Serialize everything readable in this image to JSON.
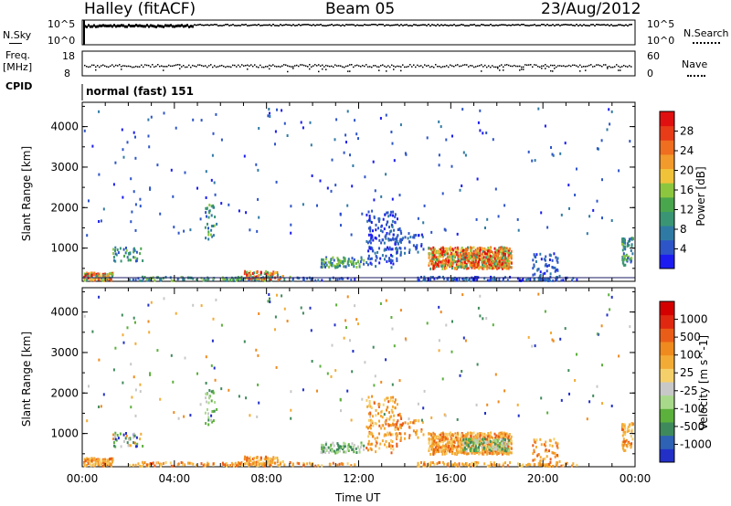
{
  "header": {
    "station": "Halley (fitACF)",
    "beam": "Beam 05",
    "date": "23/Aug/2012"
  },
  "top_panels": {
    "nsky": {
      "label": "N.Sky",
      "ticks": [
        "10^5",
        "10^0"
      ]
    },
    "nsearch": {
      "label": "N.Search",
      "ticks": [
        "10^5",
        "10^0"
      ]
    },
    "freq": {
      "label_line1": "Freq.",
      "label_line2": "[MHz]",
      "ticks": [
        "18",
        "8"
      ]
    },
    "nave": {
      "label": "Nave",
      "ticks": [
        "60",
        "0"
      ]
    },
    "cpid": {
      "label": "CPID",
      "value": "normal (fast) 151"
    }
  },
  "chart_data": [
    {
      "type": "heatmap",
      "name": "power",
      "ylabel": "Slant Range [km]",
      "xlabel": "",
      "x_ticks": [
        "00:00",
        "04:00",
        "08:00",
        "12:00",
        "16:00",
        "20:00",
        "00:00"
      ],
      "xlim_hours": [
        0,
        24
      ],
      "ylim": [
        180,
        4600
      ],
      "y_ticks": [
        1000,
        2000,
        3000,
        4000
      ],
      "colorbar": {
        "label": "Power [dB]",
        "range": [
          0,
          30
        ],
        "ticks": [
          "4",
          "8",
          "12",
          "16",
          "20",
          "24",
          "28"
        ],
        "colors": [
          "#1c1cf0",
          "#2d55c8",
          "#2f7aa5",
          "#3a9574",
          "#4aa64d",
          "#8cc63f",
          "#f0c23a",
          "#f29a2b",
          "#ef6e1f",
          "#e83b18",
          "#e11010"
        ]
      }
    },
    {
      "type": "heatmap",
      "name": "velocity",
      "ylabel": "Slant Range [km]",
      "xlabel": "Time UT",
      "x_ticks": [
        "00:00",
        "04:00",
        "08:00",
        "12:00",
        "16:00",
        "20:00",
        "00:00"
      ],
      "xlim_hours": [
        0,
        24
      ],
      "ylim": [
        180,
        4600
      ],
      "y_ticks": [
        1000,
        2000,
        3000,
        4000
      ],
      "colorbar": {
        "label": "Velocity [m s^-1]",
        "ticks": [
          "1000",
          "500",
          "100",
          "25",
          "-25",
          "-100",
          "-500",
          "-1000"
        ],
        "colors": [
          "#2230c8",
          "#2e62b4",
          "#3f8a5c",
          "#5cb03c",
          "#a8d98a",
          "#c8c8c8",
          "#f5cf6a",
          "#f3ab35",
          "#ef8a1e",
          "#ea5d18",
          "#e02810",
          "#d40000"
        ]
      }
    }
  ]
}
